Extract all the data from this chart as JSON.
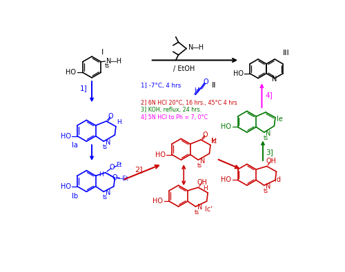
{
  "bg": "#ffffff",
  "K": "#000000",
  "B": "#0000ff",
  "R": "#cc0000",
  "G": "#007700",
  "M": "#ff00ff",
  "cond1": "1] -7°C, 4 hrs",
  "cond2": "2] 6N HCl 20°C, 16 hrs., 45°C 4 hrs",
  "cond3": "3] KOH, reflux, 24 hrs.",
  "cond4": "4] 5N HCl to Ph = 7, 0°C",
  "etoh": "/ EtOH"
}
